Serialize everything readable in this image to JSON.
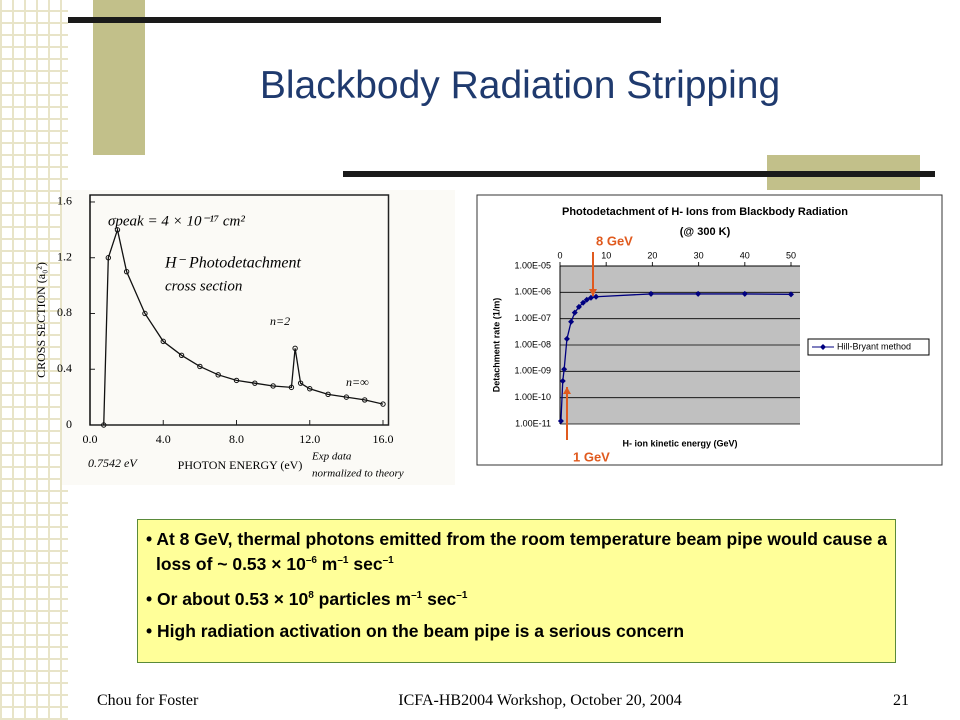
{
  "title": "Blackbody Radiation Stripping",
  "bullets": [
    [
      "At 8 GeV, thermal photons emitted from the room temperature beam pipe would cause a loss of ~ 0.53 × 10",
      "–6",
      " m",
      "–1",
      " sec",
      "–1"
    ],
    [
      "Or about 0.53 × 10",
      "8",
      " particles m",
      "–1",
      " sec",
      "–1"
    ],
    [
      "High radiation activation on the beam pipe is a serious concern"
    ]
  ],
  "footer": {
    "left": "Chou for Foster",
    "center": "ICFA-HB2004 Workshop, October 20, 2004",
    "page": "21"
  },
  "chart_data": [
    {
      "type": "line",
      "x_label": "PHOTON ENERGY (eV)",
      "y_label": "CROSS SECTION (a₀²)",
      "annotations": [
        "σpeak = 4 × 10⁻¹⁷ cm²",
        "H⁻ Photodetachment",
        "cross section",
        "n=2",
        "n=∞",
        "0.7542 eV",
        "Exp data",
        "normalized to theory"
      ],
      "x": [
        0.75,
        1,
        1.5,
        2,
        3,
        4,
        5,
        6,
        7,
        8,
        9,
        10,
        11,
        11.2,
        11.5,
        12,
        13,
        14,
        15,
        16
      ],
      "series": [
        {
          "color": "#111111",
          "values": [
            0,
            1.2,
            1.4,
            1.1,
            0.8,
            0.6,
            0.5,
            0.42,
            0.36,
            0.32,
            0.3,
            0.28,
            0.27,
            0.55,
            0.3,
            0.26,
            0.22,
            0.2,
            0.18,
            0.15
          ]
        }
      ],
      "xlim": [
        0,
        16.3
      ],
      "ylim": [
        0,
        1.65
      ],
      "xticks": [
        {
          "value": 0,
          "label": "0.0"
        },
        {
          "value": 4,
          "label": "4.0"
        },
        {
          "value": 8,
          "label": "8.0"
        },
        {
          "value": 12,
          "label": "12.0"
        },
        {
          "value": 16,
          "label": "16.0"
        }
      ],
      "yticks": [
        0,
        0.4,
        0.8,
        1.2,
        1.6
      ],
      "log_y": false,
      "grid": false
    },
    {
      "type": "line",
      "title": "Photodetachment of H- Ions from Blackbody Radiation",
      "subtitle": "(@ 300 K)",
      "x_label": "H- ion kinetic energy (GeV)",
      "y_label": "Detachment rate (1/m)",
      "annotations": [
        "8 GeV",
        "1 GeV"
      ],
      "x": [
        0.2,
        0.6,
        0.9,
        1.5,
        2.4,
        3.2,
        4.1,
        5,
        5.8,
        6.7,
        7.8,
        19.7,
        29.9,
        40,
        50
      ],
      "series": [
        {
          "name": "Hill-Bryant method",
          "color": "#000080",
          "values": [
            1.3e-11,
            4.3e-10,
            1.2e-09,
            1.7e-08,
            7.6e-08,
            1.7e-07,
            2.8e-07,
            4e-07,
            5.2e-07,
            6.2e-07,
            6.8e-07,
            8.7e-07,
            8.7e-07,
            8.7e-07,
            8.4e-07
          ]
        }
      ],
      "xlim": [
        0,
        50
      ],
      "ylim": [
        1e-11,
        1e-05
      ],
      "xticks": [
        0,
        10,
        20,
        30,
        40,
        50
      ],
      "yticks": [
        {
          "value": 1e-11,
          "label": "1.00E-11"
        },
        {
          "value": 1e-10,
          "label": "1.00E-10"
        },
        {
          "value": 1e-09,
          "label": "1.00E-09"
        },
        {
          "value": 1e-08,
          "label": "1.00E-08"
        },
        {
          "value": 1e-07,
          "label": "1.00E-07"
        },
        {
          "value": 1e-06,
          "label": "1.00E-06"
        },
        {
          "value": 1e-05,
          "label": "1.00E-05"
        }
      ],
      "log_y": true,
      "grid": true,
      "legend": "right"
    }
  ]
}
